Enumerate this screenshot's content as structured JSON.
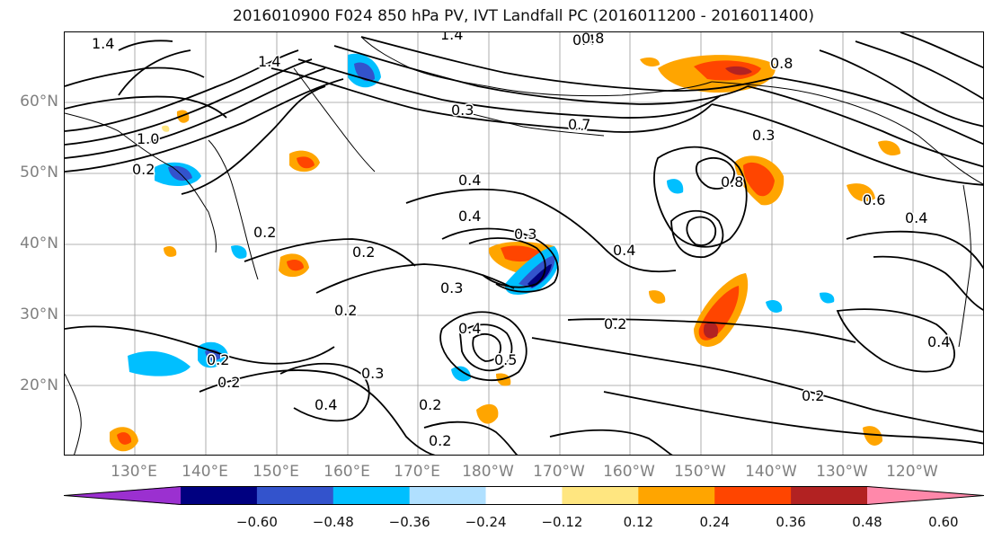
{
  "title": "2016010900 F024 850 hPa PV, IVT Landfall PC (2016011200 - 2016011400)",
  "latitude_labels": [
    "60°N",
    "50°N",
    "40°N",
    "30°N",
    "20°N"
  ],
  "longitude_labels": [
    "130°E",
    "140°E",
    "150°E",
    "160°E",
    "170°E",
    "180°W",
    "170°W",
    "160°W",
    "150°W",
    "140°W",
    "130°W",
    "120°W"
  ],
  "contour_labels": [
    {
      "text": "1.4"
    },
    {
      "text": "1.4"
    },
    {
      "text": "0.4"
    },
    {
      "text": "0.8"
    },
    {
      "text": "1.4"
    },
    {
      "text": "0.8"
    },
    {
      "text": "1.0"
    },
    {
      "text": "0.2"
    },
    {
      "text": "0.3"
    },
    {
      "text": "0.7"
    },
    {
      "text": "0.3"
    },
    {
      "text": "0.8"
    },
    {
      "text": "0.6"
    },
    {
      "text": "0.4"
    },
    {
      "text": "0.2"
    },
    {
      "text": "0.2"
    },
    {
      "text": "0.4"
    },
    {
      "text": "0.4"
    },
    {
      "text": "0.3"
    },
    {
      "text": "0.3"
    },
    {
      "text": "0.2"
    },
    {
      "text": "0.4"
    },
    {
      "text": "0.5"
    },
    {
      "text": "0.2"
    },
    {
      "text": "0.2"
    },
    {
      "text": "0.3"
    },
    {
      "text": "0.4"
    },
    {
      "text": "0.2"
    },
    {
      "text": "0.2"
    },
    {
      "text": "0.2"
    },
    {
      "text": "0.2"
    },
    {
      "text": "0.4"
    },
    {
      "text": "0.4"
    }
  ],
  "colorbar": {
    "colors": [
      "#9b30d0",
      "#000080",
      "#3353cc",
      "#00bfff",
      "#b0e0ff",
      "#ffffff",
      "#ffe680",
      "#ffa500",
      "#ff4500",
      "#b22222",
      "#ff88aa"
    ],
    "tick_labels": [
      "−0.60",
      "−0.48",
      "−0.36",
      "−0.24",
      "−0.12",
      "0.12",
      "0.24",
      "0.36",
      "0.48",
      "0.60"
    ]
  }
}
